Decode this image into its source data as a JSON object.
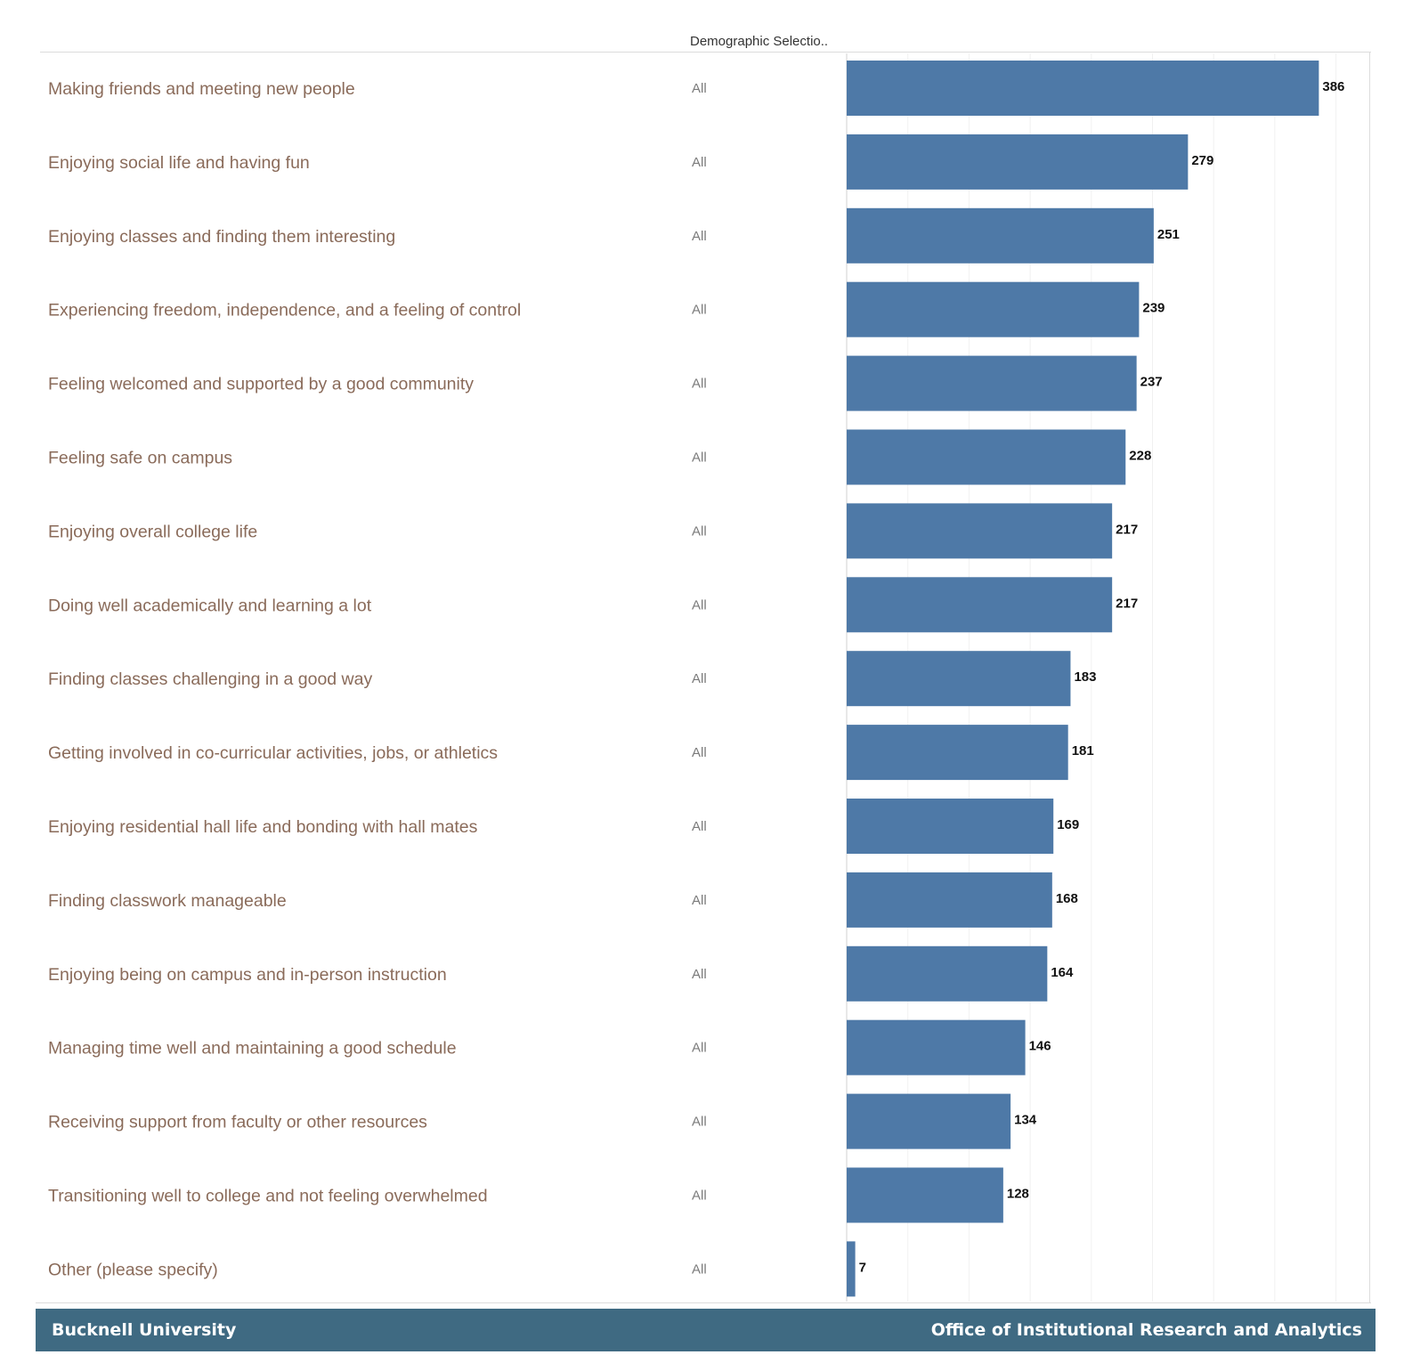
{
  "chart_data": {
    "type": "bar",
    "orientation": "horizontal",
    "column_header": "Demographic Selectio..",
    "categories": [
      "Making friends and meeting new people",
      "Enjoying social life and having fun",
      "Enjoying classes and finding them interesting",
      "Experiencing freedom, independence, and a feeling of control",
      "Feeling welcomed and supported by a good community",
      "Feeling safe on campus",
      "Enjoying overall college life",
      "Doing well academically and learning a lot",
      "Finding classes challenging in a good way",
      "Getting involved in co-curricular activities, jobs, or athletics",
      "Enjoying residential hall life and bonding with hall mates",
      "Finding classwork manageable",
      "Enjoying being on campus and in-person instruction",
      "Managing time well and maintaining a good schedule",
      "Receiving support from faculty or other resources",
      "Transitioning well to college and not feeling overwhelmed",
      "Other (please specify)"
    ],
    "demographic": [
      "All",
      "All",
      "All",
      "All",
      "All",
      "All",
      "All",
      "All",
      "All",
      "All",
      "All",
      "All",
      "All",
      "All",
      "All",
      "All",
      "All"
    ],
    "values": [
      386,
      279,
      251,
      239,
      237,
      228,
      217,
      217,
      183,
      181,
      169,
      168,
      164,
      146,
      134,
      128,
      7
    ],
    "xlim": [
      0,
      440
    ],
    "grid": true,
    "bar_color": "#4e79a7"
  },
  "footer": {
    "left": "Bucknell University",
    "right": "Office of Institutional Research and Analytics"
  },
  "colors": {
    "bar": "#4e79a7",
    "footer_bg": "#3f6a82",
    "label": "#8a6b5a"
  }
}
